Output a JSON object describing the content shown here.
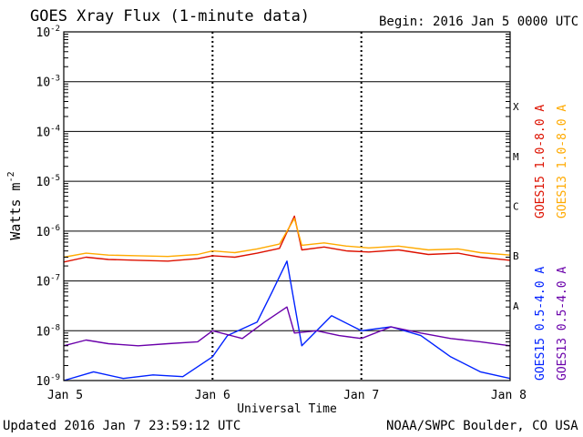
{
  "header": {
    "title": "GOES Xray Flux (1-minute data)",
    "begin_label": "Begin:",
    "begin_value": "2016 Jan 5 0000 UTC"
  },
  "footer": {
    "updated": "Updated 2016 Jan  7 23:59:12 UTC",
    "credit": "NOAA/SWPC Boulder, CO USA"
  },
  "chart_data": {
    "type": "line",
    "title": "GOES Xray Flux (1-minute data)",
    "xlabel": "Universal Time",
    "ylabel": "Watts m",
    "ylabel_superscript": "-2",
    "y_scale": "log",
    "ylim": [
      1e-09,
      0.01
    ],
    "xlim": [
      "Jan 5",
      "Jan 8"
    ],
    "x_unit": "days",
    "x_ticks": [
      "Jan 5",
      "Jan 6",
      "Jan 7",
      "Jan 8"
    ],
    "y_ticks": [
      {
        "base": "10",
        "exp": "-9"
      },
      {
        "base": "10",
        "exp": "-8"
      },
      {
        "base": "10",
        "exp": "-7"
      },
      {
        "base": "10",
        "exp": "-6"
      },
      {
        "base": "10",
        "exp": "-5"
      },
      {
        "base": "10",
        "exp": "-4"
      },
      {
        "base": "10",
        "exp": "-3"
      },
      {
        "base": "10",
        "exp": "-2"
      }
    ],
    "flare_classes": [
      "A",
      "B",
      "C",
      "M",
      "X"
    ],
    "grid": true,
    "legend_position": "right",
    "series": [
      {
        "name": "GOES15 1.0-8.0 A",
        "color": "#dd1100",
        "x": [
          0,
          0.15,
          0.3,
          0.5,
          0.7,
          0.9,
          1.0,
          1.15,
          1.3,
          1.45,
          1.55,
          1.6,
          1.75,
          1.9,
          2.05,
          2.25,
          2.45,
          2.65,
          2.8,
          3.0
        ],
        "y": [
          2.4e-07,
          3e-07,
          2.7e-07,
          2.6e-07,
          2.5e-07,
          2.8e-07,
          3.2e-07,
          3e-07,
          3.6e-07,
          4.5e-07,
          2e-06,
          4.2e-07,
          4.8e-07,
          4e-07,
          3.8e-07,
          4.2e-07,
          3.4e-07,
          3.6e-07,
          3e-07,
          2.6e-07
        ]
      },
      {
        "name": "GOES13 1.0-8.0 A",
        "color": "#ffaa00",
        "x": [
          0,
          0.15,
          0.3,
          0.5,
          0.7,
          0.9,
          1.0,
          1.15,
          1.3,
          1.45,
          1.55,
          1.6,
          1.75,
          1.9,
          2.05,
          2.25,
          2.45,
          2.65,
          2.8,
          3.0
        ],
        "y": [
          3e-07,
          3.6e-07,
          3.3e-07,
          3.2e-07,
          3.1e-07,
          3.4e-07,
          4e-07,
          3.7e-07,
          4.4e-07,
          5.5e-07,
          1.8e-06,
          5.2e-07,
          5.8e-07,
          5e-07,
          4.6e-07,
          5e-07,
          4.2e-07,
          4.4e-07,
          3.7e-07,
          3.3e-07
        ]
      },
      {
        "name": "GOES15 0.5-4.0 A",
        "color": "#0022ff",
        "x": [
          0,
          0.2,
          0.4,
          0.6,
          0.8,
          1.0,
          1.1,
          1.3,
          1.4,
          1.5,
          1.6,
          1.8,
          2.0,
          2.2,
          2.4,
          2.6,
          2.8,
          3.0
        ],
        "y": [
          1e-09,
          1.5e-09,
          1.1e-09,
          1.3e-09,
          1.2e-09,
          3e-09,
          8e-09,
          1.5e-08,
          6e-08,
          2.5e-07,
          5e-09,
          2e-08,
          1e-08,
          1.2e-08,
          8e-09,
          3e-09,
          1.5e-09,
          1.1e-09
        ]
      },
      {
        "name": "GOES13 0.5-4.0 A",
        "color": "#6a00aa",
        "x": [
          0,
          0.15,
          0.3,
          0.5,
          0.7,
          0.9,
          1.0,
          1.2,
          1.35,
          1.5,
          1.55,
          1.7,
          1.85,
          2.0,
          2.2,
          2.4,
          2.6,
          2.8,
          3.0
        ],
        "y": [
          5e-09,
          6.5e-09,
          5.5e-09,
          5e-09,
          5.5e-09,
          6e-09,
          1e-08,
          7e-09,
          1.5e-08,
          3e-08,
          9e-09,
          1e-08,
          8e-09,
          7e-09,
          1.2e-08,
          9e-09,
          7e-09,
          6e-09,
          5e-09
        ]
      }
    ]
  }
}
